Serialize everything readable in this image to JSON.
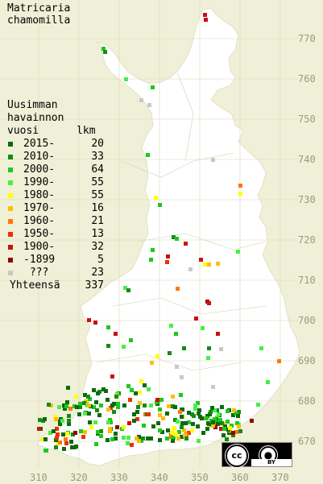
{
  "title": [
    "Matricaria",
    "chamomilla"
  ],
  "legend": {
    "header": [
      "Uusimman",
      "havainnon",
      "vuosi      lkm"
    ],
    "rows": [
      {
        "label": "2015-",
        "count": "20",
        "color": "#0a6b0a"
      },
      {
        "label": "2010-",
        "count": "33",
        "color": "#148c14"
      },
      {
        "label": "2000-",
        "count": "64",
        "color": "#1ec81e"
      },
      {
        "label": "1990-",
        "count": "55",
        "color": "#46f046"
      },
      {
        "label": "1980-",
        "count": "55",
        "color": "#ffff00"
      },
      {
        "label": "1970-",
        "count": "16",
        "color": "#ffbe00"
      },
      {
        "label": "1960-",
        "count": "21",
        "color": "#ff7800"
      },
      {
        "label": "1950-",
        "count": "13",
        "color": "#ee3000"
      },
      {
        "label": "1900-",
        "count": "32",
        "color": "#cc1010"
      },
      {
        "label": "-1899",
        "count": "5",
        "color": "#960000"
      },
      {
        "label": " ???",
        "count": "23",
        "color": "#c8c8c8"
      }
    ],
    "total_label": "Yhteensä",
    "total_count": "337"
  },
  "y_axis_labels": [
    "770",
    "760",
    "750",
    "740",
    "730",
    "720",
    "710",
    "700",
    "690",
    "680",
    "670"
  ],
  "x_axis_labels": [
    "310",
    "320",
    "330",
    "340",
    "350",
    "360",
    "370"
  ],
  "license": {
    "badge": "BY",
    "cc_text": "cc",
    "icon": "person-icon"
  },
  "colors": {
    "background": "#f0f0d8",
    "land": "#ffffff",
    "grid": "#c8c8a0"
  }
}
